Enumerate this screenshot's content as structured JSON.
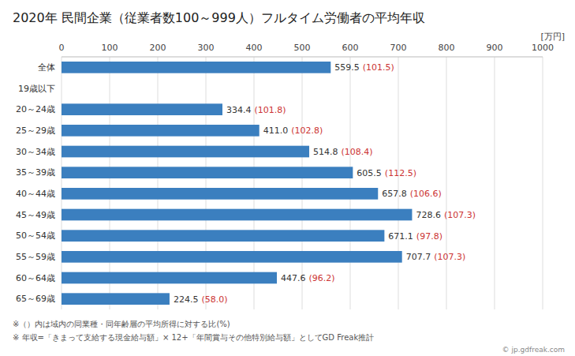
{
  "chart_data": {
    "type": "bar",
    "orientation": "horizontal",
    "title": "2020年 民間企業（従業者数100～999人）フルタイム労働者の平均年収",
    "xlabel": "[万円]",
    "categories": [
      "全体",
      "19歳以下",
      "20～24歳",
      "25～29歳",
      "30～34歳",
      "35～39歳",
      "40～44歳",
      "45～49歳",
      "50～54歳",
      "55～59歳",
      "60～64歳",
      "65～69歳"
    ],
    "values": [
      559.5,
      0,
      334.4,
      411.0,
      514.8,
      605.5,
      657.8,
      728.6,
      671.1,
      707.7,
      447.6,
      224.5
    ],
    "value_labels": [
      "559.5",
      null,
      "334.4",
      "411.0",
      "514.8",
      "605.5",
      "657.8",
      "728.6",
      "671.1",
      "707.7",
      "447.6",
      "224.5"
    ],
    "ratios": [
      101.5,
      null,
      101.8,
      102.8,
      108.4,
      112.5,
      106.6,
      107.3,
      97.8,
      107.3,
      96.2,
      58.0
    ],
    "ratio_labels": [
      "(101.5)",
      null,
      "(101.8)",
      "(102.8)",
      "(108.4)",
      "(112.5)",
      "(106.6)",
      "(107.3)",
      "(97.8)",
      "(107.3)",
      "(96.2)",
      "(58.0)"
    ],
    "ratio_color": "#CC3333",
    "color": "#3B7FBF",
    "data_labels": true,
    "xlim": [
      0,
      1000
    ],
    "xticks": [
      0,
      100,
      200,
      300,
      400,
      500,
      600,
      700,
      800,
      900,
      1000
    ],
    "grid": true,
    "annotations": [
      "※（）内は域内の同業種・同年齢層の平均所得に対する比(%)",
      "※ 年収=「きまって支給する現金給与額」× 12+「年間賞与その他特別給与額」としてGD Freak推計",
      "© jp.gdfreak.com"
    ]
  }
}
